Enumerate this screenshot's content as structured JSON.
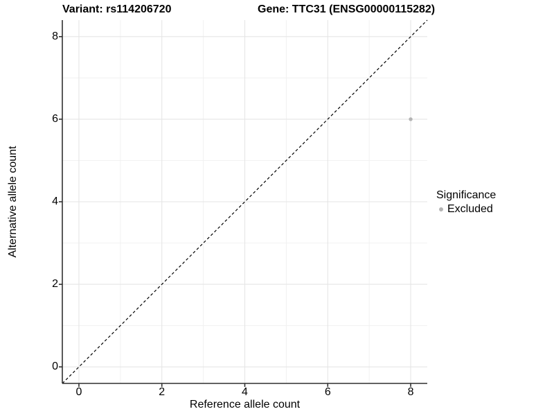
{
  "chart_data": {
    "type": "scatter",
    "title_left": "Variant: rs114206720",
    "title_right": "Gene: TTC31 (ENSG00000115282)",
    "xlabel": "Reference allele count",
    "ylabel": "Alternative allele count",
    "xlim": [
      -0.4,
      8.4
    ],
    "ylim": [
      -0.4,
      8.4
    ],
    "x_major_ticks": [
      0,
      2,
      4,
      6,
      8
    ],
    "y_major_ticks": [
      0,
      2,
      4,
      6,
      8
    ],
    "x_minor_ticks": [
      1,
      3,
      5,
      7
    ],
    "y_minor_ticks": [
      1,
      3,
      5,
      7
    ],
    "grid": "major+minor",
    "reference_line": {
      "type": "abline",
      "slope": 1,
      "intercept": 0,
      "style": "dashed",
      "color": "#000000"
    },
    "series": [
      {
        "name": "Excluded",
        "color": "#b4b4b4",
        "points": [
          {
            "x": 8,
            "y": 6
          }
        ]
      }
    ],
    "legend": {
      "title": "Significance",
      "position": "right",
      "items": [
        {
          "label": "Excluded",
          "color": "#b4b4b4"
        }
      ]
    },
    "colors": {
      "background": "#ffffff",
      "grid_major": "#e5e5e5",
      "grid_minor": "#f0f0f0",
      "axis_line": "#2f2f2f",
      "text": "#000000"
    }
  }
}
